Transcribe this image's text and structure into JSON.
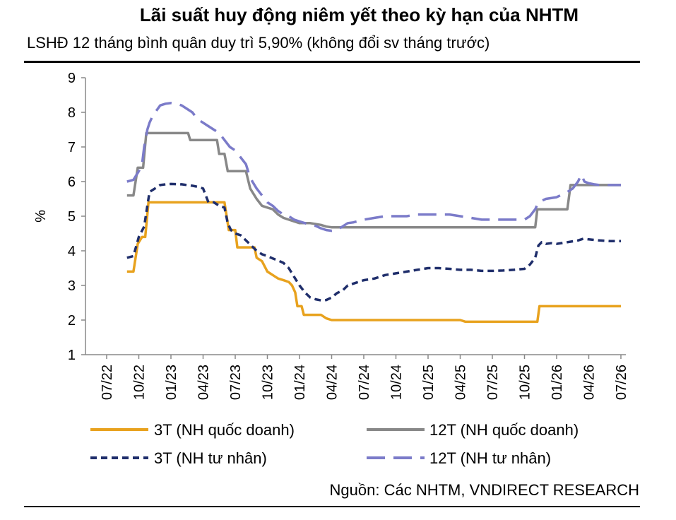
{
  "header": {
    "title": "Lãi suất huy động niêm yết theo kỳ hạn của NHTM",
    "subtitle": "LSHĐ 12 tháng bình quân duy trì 5,90% (không đổi sv tháng trước)"
  },
  "source": "Nguồn: Các NHTM, VNDIRECT RESEARCH",
  "chart_data": {
    "type": "line",
    "ylabel": "%",
    "xlabel": "",
    "ylim": [
      1,
      9
    ],
    "yticks": [
      1,
      2,
      3,
      4,
      5,
      6,
      7,
      8,
      9
    ],
    "xlim": [
      0,
      48
    ],
    "xticks": [
      {
        "x": 0,
        "label": "07/22"
      },
      {
        "x": 3,
        "label": "10/22"
      },
      {
        "x": 6,
        "label": "01/23"
      },
      {
        "x": 9,
        "label": "04/23"
      },
      {
        "x": 12,
        "label": "07/23"
      },
      {
        "x": 15,
        "label": "10/23"
      },
      {
        "x": 18,
        "label": "01/24"
      },
      {
        "x": 21,
        "label": "04/24"
      },
      {
        "x": 24,
        "label": "07/24"
      },
      {
        "x": 27,
        "label": "10/24"
      },
      {
        "x": 30,
        "label": "01/25"
      },
      {
        "x": 33,
        "label": "04/25"
      },
      {
        "x": 36,
        "label": "07/25"
      },
      {
        "x": 39,
        "label": "10/25"
      },
      {
        "x": 42,
        "label": "01/26"
      },
      {
        "x": 45,
        "label": "04/26"
      },
      {
        "x": 48,
        "label": "07/26"
      }
    ],
    "grid": false,
    "legend_position": "bottom",
    "series": [
      {
        "name": "3T (NH quốc doanh)",
        "color": "#E8A21E",
        "dash": "solid",
        "points": [
          [
            1.9,
            3.4
          ],
          [
            2.5,
            3.4
          ],
          [
            2.9,
            4.2
          ],
          [
            3.3,
            4.4
          ],
          [
            3.6,
            4.4
          ],
          [
            3.9,
            5.4
          ],
          [
            4.5,
            5.4
          ],
          [
            6,
            5.4
          ],
          [
            8,
            5.4
          ],
          [
            9,
            5.4
          ],
          [
            10,
            5.4
          ],
          [
            11,
            5.4
          ],
          [
            11.4,
            4.6
          ],
          [
            12,
            4.6
          ],
          [
            12.2,
            4.1
          ],
          [
            13,
            4.1
          ],
          [
            13.8,
            4.1
          ],
          [
            14,
            3.8
          ],
          [
            14.5,
            3.7
          ],
          [
            15,
            3.4
          ],
          [
            15.5,
            3.3
          ],
          [
            16,
            3.2
          ],
          [
            16.5,
            3.15
          ],
          [
            17,
            3.1
          ],
          [
            17.3,
            3.0
          ],
          [
            17.6,
            2.8
          ],
          [
            17.8,
            2.4
          ],
          [
            18.2,
            2.4
          ],
          [
            18.4,
            2.15
          ],
          [
            19,
            2.15
          ],
          [
            20,
            2.15
          ],
          [
            20.5,
            2.05
          ],
          [
            21,
            2
          ],
          [
            22,
            2
          ],
          [
            25,
            2
          ],
          [
            28,
            2
          ],
          [
            31,
            2
          ],
          [
            33,
            2
          ],
          [
            33.5,
            1.95
          ],
          [
            36,
            1.95
          ],
          [
            39,
            1.95
          ],
          [
            39.8,
            1.95
          ],
          [
            40.2,
            1.95
          ],
          [
            40.4,
            2.4
          ],
          [
            41,
            2.4
          ],
          [
            44,
            2.4
          ],
          [
            46,
            2.4
          ],
          [
            48,
            2.4
          ]
        ]
      },
      {
        "name": "12T (NH quốc doanh)",
        "color": "#888888",
        "dash": "solid",
        "points": [
          [
            1.9,
            5.6
          ],
          [
            2.5,
            5.6
          ],
          [
            2.9,
            6.4
          ],
          [
            3.4,
            6.4
          ],
          [
            3.7,
            7.4
          ],
          [
            4.5,
            7.4
          ],
          [
            6,
            7.4
          ],
          [
            7.6,
            7.4
          ],
          [
            7.8,
            7.2
          ],
          [
            8,
            7.2
          ],
          [
            9,
            7.2
          ],
          [
            10.3,
            7.2
          ],
          [
            10.5,
            6.8
          ],
          [
            11,
            6.8
          ],
          [
            11.3,
            6.3
          ],
          [
            12,
            6.3
          ],
          [
            13,
            6.3
          ],
          [
            13.4,
            5.8
          ],
          [
            14,
            5.5
          ],
          [
            14.5,
            5.3
          ],
          [
            15,
            5.25
          ],
          [
            15.5,
            5.2
          ],
          [
            16,
            5.05
          ],
          [
            16.5,
            4.95
          ],
          [
            17,
            4.9
          ],
          [
            17.5,
            4.85
          ],
          [
            18,
            4.8
          ],
          [
            19,
            4.8
          ],
          [
            20,
            4.75
          ],
          [
            20.5,
            4.7
          ],
          [
            21,
            4.68
          ],
          [
            24,
            4.68
          ],
          [
            27,
            4.68
          ],
          [
            30,
            4.68
          ],
          [
            33,
            4.68
          ],
          [
            36,
            4.68
          ],
          [
            39,
            4.68
          ],
          [
            40,
            4.68
          ],
          [
            40.2,
            5.2
          ],
          [
            41,
            5.2
          ],
          [
            43,
            5.2
          ],
          [
            43.3,
            5.9
          ],
          [
            44,
            5.9
          ],
          [
            46,
            5.9
          ],
          [
            48,
            5.9
          ]
        ]
      },
      {
        "name": "3T (NH tư nhân)",
        "color": "#1F2E6B",
        "dash": "dash",
        "points": [
          [
            1.9,
            3.8
          ],
          [
            2.5,
            3.85
          ],
          [
            3,
            4.4
          ],
          [
            3.5,
            4.7
          ],
          [
            3.8,
            5.3
          ],
          [
            4,
            5.7
          ],
          [
            4.5,
            5.8
          ],
          [
            5,
            5.9
          ],
          [
            5.5,
            5.92
          ],
          [
            6,
            5.93
          ],
          [
            7,
            5.92
          ],
          [
            8,
            5.88
          ],
          [
            8.5,
            5.85
          ],
          [
            9,
            5.8
          ],
          [
            9.5,
            5.4
          ],
          [
            10,
            5.4
          ],
          [
            10.5,
            5.3
          ],
          [
            11,
            5.25
          ],
          [
            11.3,
            4.8
          ],
          [
            11.6,
            4.6
          ],
          [
            12,
            4.5
          ],
          [
            12.5,
            4.45
          ],
          [
            13,
            4.3
          ],
          [
            13.5,
            4.15
          ],
          [
            14,
            4.0
          ],
          [
            14.5,
            3.9
          ],
          [
            15,
            3.85
          ],
          [
            15.5,
            3.78
          ],
          [
            16,
            3.72
          ],
          [
            16.5,
            3.65
          ],
          [
            17,
            3.5
          ],
          [
            17.5,
            3.25
          ],
          [
            18,
            3.0
          ],
          [
            18.5,
            2.8
          ],
          [
            19,
            2.65
          ],
          [
            19.5,
            2.6
          ],
          [
            20,
            2.57
          ],
          [
            20.5,
            2.58
          ],
          [
            21,
            2.65
          ],
          [
            21.5,
            2.78
          ],
          [
            22,
            2.85
          ],
          [
            22.5,
            3.0
          ],
          [
            23,
            3.05
          ],
          [
            23.5,
            3.1
          ],
          [
            24,
            3.15
          ],
          [
            25,
            3.2
          ],
          [
            26,
            3.3
          ],
          [
            27,
            3.35
          ],
          [
            28,
            3.4
          ],
          [
            29,
            3.45
          ],
          [
            30,
            3.5
          ],
          [
            31,
            3.5
          ],
          [
            32,
            3.48
          ],
          [
            33,
            3.45
          ],
          [
            34,
            3.45
          ],
          [
            35,
            3.42
          ],
          [
            36,
            3.42
          ],
          [
            37,
            3.43
          ],
          [
            38,
            3.45
          ],
          [
            39,
            3.48
          ],
          [
            39.5,
            3.6
          ],
          [
            40,
            3.8
          ],
          [
            40.3,
            4.15
          ],
          [
            40.6,
            4.25
          ],
          [
            41,
            4.2
          ],
          [
            41.5,
            4.22
          ],
          [
            42,
            4.2
          ],
          [
            43,
            4.25
          ],
          [
            44,
            4.3
          ],
          [
            44.5,
            4.35
          ],
          [
            45,
            4.33
          ],
          [
            46,
            4.3
          ],
          [
            47,
            4.28
          ],
          [
            48,
            4.28
          ]
        ]
      },
      {
        "name": "12T (NH tư nhân)",
        "color": "#7B7BC9",
        "dash": "longdash",
        "points": [
          [
            1.9,
            6.0
          ],
          [
            2.5,
            6.05
          ],
          [
            3,
            6.3
          ],
          [
            3.3,
            6.5
          ],
          [
            3.5,
            7.0
          ],
          [
            3.8,
            7.5
          ],
          [
            4,
            7.7
          ],
          [
            4.3,
            7.9
          ],
          [
            5,
            8.2
          ],
          [
            5.5,
            8.25
          ],
          [
            6,
            8.27
          ],
          [
            6.5,
            8.25
          ],
          [
            7,
            8.2
          ],
          [
            7.5,
            8.1
          ],
          [
            8,
            8.0
          ],
          [
            8.5,
            7.8
          ],
          [
            9,
            7.7
          ],
          [
            9.5,
            7.6
          ],
          [
            10,
            7.5
          ],
          [
            10.5,
            7.4
          ],
          [
            11,
            7.2
          ],
          [
            11.5,
            7.0
          ],
          [
            12,
            6.9
          ],
          [
            12.5,
            6.7
          ],
          [
            13,
            6.5
          ],
          [
            13.3,
            6.2
          ],
          [
            13.6,
            6.0
          ],
          [
            14,
            5.8
          ],
          [
            14.5,
            5.6
          ],
          [
            15,
            5.4
          ],
          [
            15.5,
            5.3
          ],
          [
            16,
            5.15
          ],
          [
            16.5,
            5.05
          ],
          [
            17,
            5.0
          ],
          [
            17.5,
            4.9
          ],
          [
            18,
            4.85
          ],
          [
            18.5,
            4.8
          ],
          [
            19,
            4.75
          ],
          [
            19.5,
            4.72
          ],
          [
            20,
            4.65
          ],
          [
            20.5,
            4.6
          ],
          [
            21,
            4.58
          ],
          [
            21.5,
            4.6
          ],
          [
            22,
            4.7
          ],
          [
            22.5,
            4.8
          ],
          [
            23,
            4.82
          ],
          [
            24,
            4.9
          ],
          [
            25,
            4.95
          ],
          [
            26,
            5.0
          ],
          [
            27,
            5.0
          ],
          [
            28,
            5.0
          ],
          [
            29,
            5.05
          ],
          [
            30,
            5.05
          ],
          [
            31,
            5.05
          ],
          [
            32,
            5.05
          ],
          [
            33,
            5.0
          ],
          [
            34,
            4.95
          ],
          [
            35,
            4.9
          ],
          [
            36,
            4.9
          ],
          [
            37,
            4.9
          ],
          [
            38,
            4.9
          ],
          [
            39,
            4.9
          ],
          [
            39.5,
            5.0
          ],
          [
            40,
            5.2
          ],
          [
            40.3,
            5.4
          ],
          [
            41,
            5.5
          ],
          [
            42,
            5.55
          ],
          [
            43,
            5.7
          ],
          [
            43.5,
            5.8
          ],
          [
            44,
            6.0
          ],
          [
            44.3,
            6.2
          ],
          [
            44.6,
            6.0
          ],
          [
            45,
            5.95
          ],
          [
            45.5,
            5.92
          ],
          [
            46,
            5.9
          ],
          [
            47,
            5.9
          ],
          [
            48,
            5.9
          ]
        ]
      }
    ]
  }
}
